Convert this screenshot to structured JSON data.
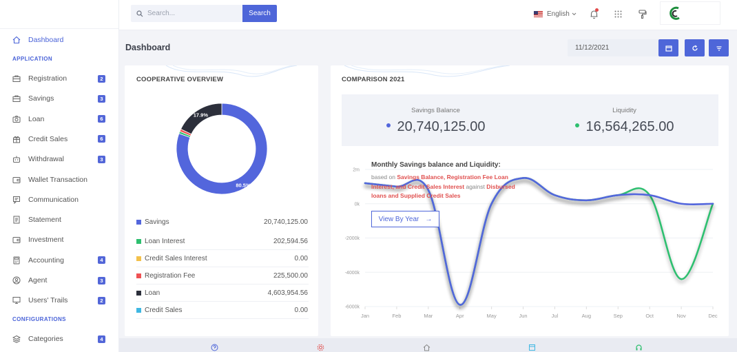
{
  "sidebar": {
    "dashboard": "Dashboard",
    "section_application": "APPLICATION",
    "section_configurations": "CONFIGURATIONS",
    "items": [
      {
        "label": "Registration",
        "badge": "2",
        "icon": "briefcase-icon"
      },
      {
        "label": "Savings",
        "badge": "3",
        "icon": "briefcase-icon"
      },
      {
        "label": "Loan",
        "badge": "6",
        "icon": "camera-icon"
      },
      {
        "label": "Credit Sales",
        "badge": "6",
        "icon": "gift-icon"
      },
      {
        "label": "Withdrawal",
        "badge": "3",
        "icon": "robot-icon"
      },
      {
        "label": "Wallet Transaction",
        "badge": "",
        "icon": "wallet-icon"
      },
      {
        "label": "Communication",
        "badge": "",
        "icon": "chat-icon"
      },
      {
        "label": "Statement",
        "badge": "",
        "icon": "document-icon"
      },
      {
        "label": "Investment",
        "badge": "",
        "icon": "wallet-icon"
      },
      {
        "label": "Accounting",
        "badge": "4",
        "icon": "calculator-icon"
      },
      {
        "label": "Agent",
        "badge": "3",
        "icon": "user-circle-icon"
      },
      {
        "label": "Users' Trails",
        "badge": "2",
        "icon": "monitor-icon"
      }
    ],
    "config_items": [
      {
        "label": "Categories",
        "badge": "4",
        "icon": "layers-icon"
      }
    ]
  },
  "topbar": {
    "search_placeholder": "Search...",
    "search_button": "Search",
    "language": "English"
  },
  "header": {
    "title": "Dashboard",
    "date": "11/12/2021"
  },
  "overview": {
    "title": "COOPERATIVE OVERVIEW",
    "legend": [
      {
        "label": "Savings",
        "value": "20,740,125.00",
        "color": "#5366dc"
      },
      {
        "label": "Loan Interest",
        "value": "202,594.56",
        "color": "#2ebf6f"
      },
      {
        "label": "Credit Sales Interest",
        "value": "0.00",
        "color": "#f3c14b"
      },
      {
        "label": "Registration Fee",
        "value": "225,500.00",
        "color": "#ef5254"
      },
      {
        "label": "Loan",
        "value": "4,603,954.56",
        "color": "#2c2f3b"
      },
      {
        "label": "Credit Sales",
        "value": "0.00",
        "color": "#3fb7e2"
      }
    ]
  },
  "comparison": {
    "title": "COMPARISON 2021",
    "savings_label": "Savings Balance",
    "savings_value": "20,740,125.00",
    "savings_color": "#5366dc",
    "liquidity_label": "Liquidity",
    "liquidity_value": "16,564,265.00",
    "liquidity_color": "#2ebf6f",
    "chart_heading": "Monthly Savings balance and Liquidity:",
    "sub_prefix": "based on ",
    "sub_hl1": "Savings Balance, Registration Fee Loan Interest, and Credit Sales Interest",
    "sub_mid": " against ",
    "sub_hl2": "Disbursed loans and Supplied Credit Sales",
    "view_button": "View By Year"
  },
  "chart_data": [
    {
      "type": "pie",
      "categories": [
        "Savings",
        "Loan Interest",
        "Credit Sales Interest",
        "Registration Fee",
        "Loan",
        "Credit Sales"
      ],
      "values": [
        20740125.0,
        202594.56,
        0.0,
        225500.0,
        4603954.56,
        0.0
      ],
      "colors": [
        "#5366dc",
        "#2ebf6f",
        "#f3c14b",
        "#ef5254",
        "#2c2f3b",
        "#3fb7e2"
      ],
      "labels": [
        "80.5%",
        "",
        "",
        "",
        "17.9%",
        ""
      ]
    },
    {
      "type": "line",
      "x": [
        "Jan",
        "Feb",
        "Mar",
        "Apr",
        "May",
        "Jun",
        "Jul",
        "Aug",
        "Sep",
        "Oct",
        "Nov",
        "Dec"
      ],
      "yticks": [
        "2m",
        "0k",
        "-2000k",
        "-4000k",
        "-6000k"
      ],
      "ylim": [
        -6000000,
        2000000
      ],
      "series": [
        {
          "values": [
            1200000,
            1000000,
            800000,
            -5900000,
            0,
            1500000,
            500000,
            200000,
            500000,
            500000,
            -4400000,
            0
          ],
          "color": "#2ebf6f"
        },
        {
          "values": [
            1200000,
            1000000,
            800000,
            -5900000,
            0,
            1500000,
            500000,
            200000,
            500000,
            500000,
            0,
            0
          ],
          "color": "#5366dc"
        }
      ],
      "grid": true
    }
  ]
}
